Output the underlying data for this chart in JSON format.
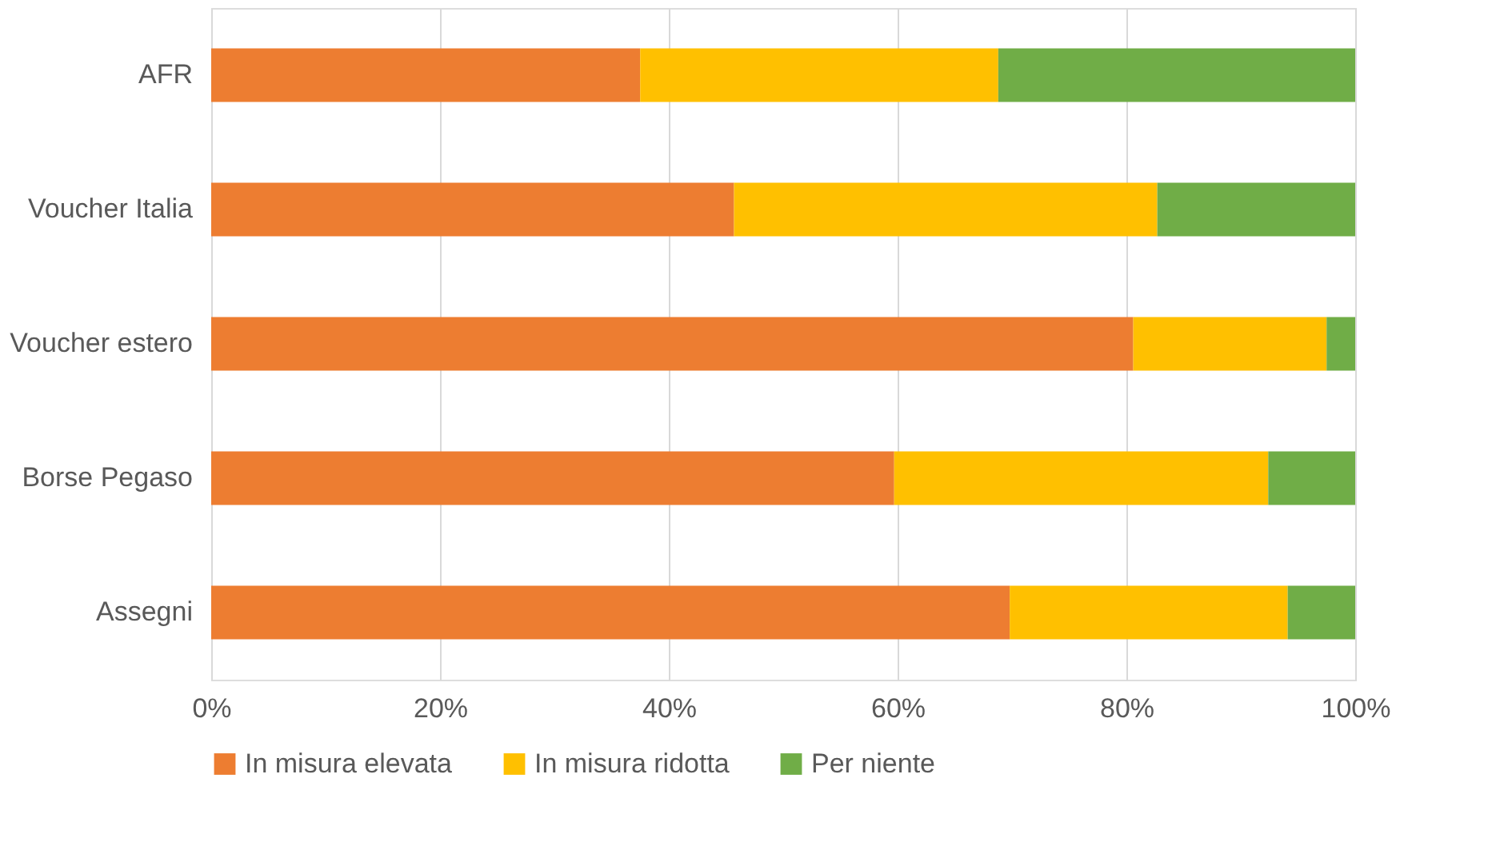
{
  "chart_data": {
    "type": "bar",
    "orientation": "horizontal",
    "stacked": true,
    "categories": [
      "AFR",
      "Voucher Italia",
      "Voucher estero",
      "Borse Pegaso",
      "Assegni"
    ],
    "series": [
      {
        "name": "In misura elevata",
        "color": "#ed7d31",
        "values": [
          37.5,
          45.7,
          80.6,
          59.7,
          69.8
        ]
      },
      {
        "name": "In misura ridotta",
        "color": "#ffc000",
        "values": [
          31.3,
          37.0,
          16.9,
          32.7,
          24.3
        ]
      },
      {
        "name": "Per niente",
        "color": "#70ad47",
        "values": [
          31.2,
          17.3,
          2.5,
          7.6,
          5.9
        ]
      }
    ],
    "xlim": [
      0,
      100
    ],
    "xticks": [
      {
        "value": 0,
        "label": "0%"
      },
      {
        "value": 20,
        "label": "20%"
      },
      {
        "value": 40,
        "label": "40%"
      },
      {
        "value": 60,
        "label": "60%"
      },
      {
        "value": 80,
        "label": "80%"
      },
      {
        "value": 100,
        "label": "100%"
      }
    ],
    "grid": "x",
    "legend": "bottom"
  }
}
